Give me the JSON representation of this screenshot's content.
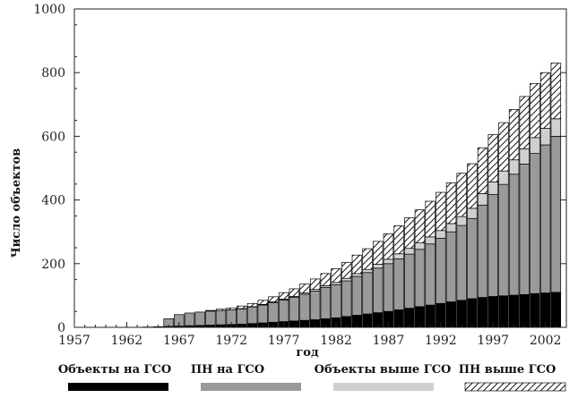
{
  "chart_data": {
    "type": "bar",
    "stacked": true,
    "xlabel": "год",
    "ylabel": "Число объектов",
    "title": "",
    "x_ticks": [
      "1957",
      "1962",
      "1967",
      "1972",
      "1977",
      "1982",
      "1987",
      "1992",
      "1997",
      "2002"
    ],
    "y_ticks": [
      "0",
      "200",
      "400",
      "600",
      "800",
      "1000"
    ],
    "ylim": [
      0,
      1000
    ],
    "xlim": [
      1957,
      2004
    ],
    "grid": false,
    "legend_position": "bottom",
    "categories": [
      1964,
      1965,
      1966,
      1967,
      1968,
      1969,
      1970,
      1971,
      1972,
      1973,
      1974,
      1975,
      1976,
      1977,
      1978,
      1979,
      1980,
      1981,
      1982,
      1983,
      1984,
      1985,
      1986,
      1987,
      1988,
      1989,
      1990,
      1991,
      1992,
      1993,
      1994,
      1995,
      1996,
      1997,
      1998,
      1999,
      2000,
      2001,
      2002,
      2003
    ],
    "series": [
      {
        "name": "Объекты на ГСО",
        "color": "#000000",
        "pattern": "solid",
        "values": [
          1,
          2,
          3,
          4,
          5,
          6,
          7,
          8,
          9,
          10,
          12,
          14,
          16,
          18,
          20,
          22,
          24,
          27,
          30,
          34,
          38,
          42,
          46,
          50,
          55,
          60,
          65,
          70,
          75,
          80,
          85,
          90,
          94,
          97,
          99,
          101,
          103,
          106,
          108,
          110
        ]
      },
      {
        "name": "ПН на ГСО",
        "color": "#9a9a9a",
        "pattern": "solid",
        "values": [
          0,
          0,
          24,
          36,
          40,
          42,
          44,
          45,
          46,
          48,
          52,
          56,
          62,
          68,
          74,
          82,
          90,
          98,
          104,
          112,
          122,
          130,
          140,
          150,
          160,
          170,
          180,
          192,
          205,
          220,
          235,
          252,
          290,
          320,
          350,
          380,
          410,
          440,
          465,
          490
        ]
      },
      {
        "name": "Объекты выше ГСО",
        "color": "#d0d0d0",
        "pattern": "solid",
        "values": [
          0,
          0,
          0,
          0,
          0,
          0,
          0,
          0,
          0,
          1,
          1,
          2,
          2,
          3,
          3,
          4,
          5,
          6,
          7,
          8,
          9,
          10,
          12,
          14,
          16,
          18,
          20,
          22,
          24,
          26,
          28,
          32,
          36,
          40,
          42,
          45,
          48,
          50,
          52,
          55
        ]
      },
      {
        "name": "ПН выше ГСО",
        "color": "#ffffff",
        "pattern": "hatch",
        "values": [
          0,
          0,
          0,
          0,
          0,
          0,
          2,
          4,
          6,
          8,
          10,
          13,
          16,
          20,
          24,
          28,
          33,
          38,
          43,
          50,
          58,
          65,
          72,
          80,
          88,
          96,
          104,
          112,
          120,
          128,
          136,
          140,
          144,
          148,
          152,
          158,
          164,
          170,
          175,
          175
        ]
      }
    ]
  }
}
